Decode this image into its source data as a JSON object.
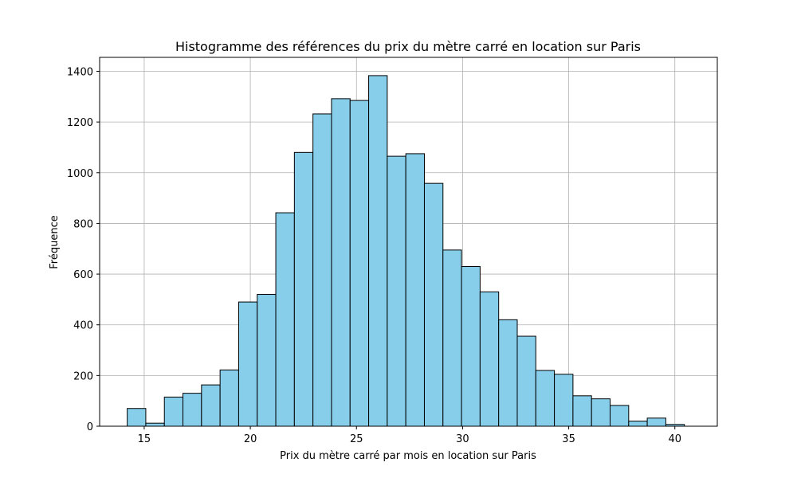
{
  "chart_data": {
    "type": "bar",
    "title": "Histogramme des références du prix du mètre carré en location sur Paris",
    "xlabel": "Prix du mètre carré par mois en location sur Paris",
    "ylabel": "Fréquence",
    "xlim": [
      12.9,
      42.0
    ],
    "ylim": [
      0,
      1455
    ],
    "xticks": [
      15,
      20,
      25,
      30,
      35,
      40
    ],
    "yticks": [
      0,
      200,
      400,
      600,
      800,
      1000,
      1200,
      1400
    ],
    "grid": true,
    "bar_color": "#87CEEB",
    "edge_color": "#000000",
    "bin_start": 14.2,
    "bin_width": 0.875,
    "values": [
      70,
      12,
      115,
      130,
      163,
      222,
      490,
      520,
      842,
      1080,
      1232,
      1292,
      1285,
      1383,
      1065,
      1075,
      958,
      695,
      630,
      530,
      420,
      355,
      220,
      205,
      120,
      108,
      82,
      20,
      32,
      7
    ]
  }
}
